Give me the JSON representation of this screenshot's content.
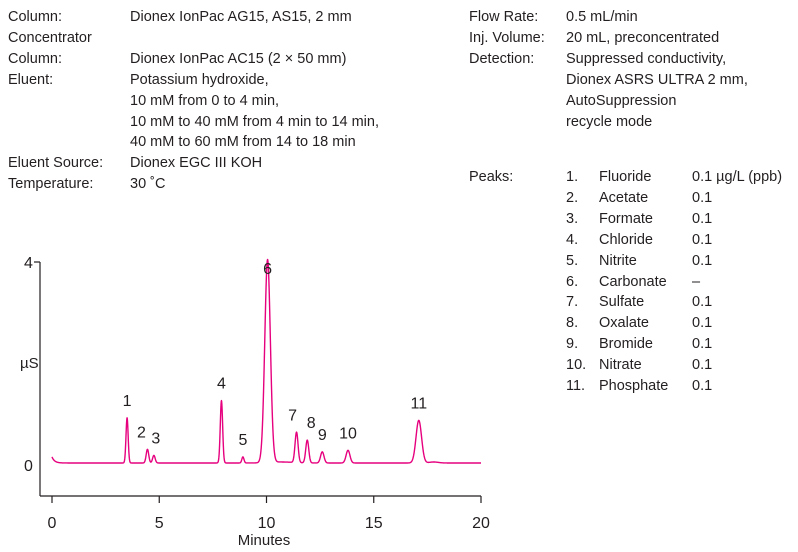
{
  "conditions_left": [
    {
      "label": "Column:",
      "lines": [
        "Dionex IonPac AG15, AS15, 2 mm"
      ]
    },
    {
      "label": "Concentrator",
      "lines": []
    },
    {
      "label": "Column:",
      "lines": [
        "Dionex IonPac AC15 (2 × 50 mm)"
      ]
    },
    {
      "label": "Eluent:",
      "lines": [
        "Potassium hydroxide,",
        "10 mM from 0 to 4 min,",
        "10 mM to 40 mM from 4 min to 14 min,",
        "40 mM to 60 mM from 14 to 18 min"
      ]
    },
    {
      "label": "Eluent Source:",
      "lines": [
        "Dionex EGC III KOH"
      ]
    },
    {
      "label": "Temperature:",
      "lines": [
        "30 ˚C"
      ]
    }
  ],
  "conditions_right": [
    {
      "label": "Flow Rate:",
      "lines": [
        "0.5 mL/min"
      ]
    },
    {
      "label": "Inj. Volume:",
      "lines": [
        "20 mL, preconcentrated"
      ]
    },
    {
      "label": "Detection:",
      "lines": [
        "Suppressed conductivity,",
        "Dionex ASRS ULTRA 2 mm,",
        "AutoSuppression",
        "recycle mode"
      ]
    }
  ],
  "peaks_label": "Peaks:",
  "peaks": [
    {
      "n": "1.",
      "name": "Fluoride",
      "amount": "0.1 µg/L (ppb)"
    },
    {
      "n": "2.",
      "name": "Acetate",
      "amount": "0.1"
    },
    {
      "n": "3.",
      "name": "Formate",
      "amount": "0.1"
    },
    {
      "n": "4.",
      "name": "Chloride",
      "amount": "0.1"
    },
    {
      "n": "5.",
      "name": "Nitrite",
      "amount": "0.1"
    },
    {
      "n": "6.",
      "name": "Carbonate",
      "amount": "–"
    },
    {
      "n": "7.",
      "name": "Sulfate",
      "amount": "0.1"
    },
    {
      "n": "8.",
      "name": "Oxalate",
      "amount": "0.1"
    },
    {
      "n": "9.",
      "name": "Bromide",
      "amount": "0.1"
    },
    {
      "n": "10.",
      "name": "Nitrate",
      "amount": "0.1"
    },
    {
      "n": "11.",
      "name": "Phosphate",
      "amount": "0.1"
    }
  ],
  "chart_data": {
    "type": "line",
    "title": "",
    "xlabel": "Minutes",
    "ylabel": "µS",
    "xlim": [
      0,
      20
    ],
    "ylim": [
      0,
      4
    ],
    "xticks": [
      0,
      5,
      10,
      15,
      20
    ],
    "yticks": [
      0,
      4
    ],
    "line_color": "#e6007e",
    "baseline": 0.0,
    "peaks": [
      {
        "label": "1",
        "x": 3.5,
        "y": 0.89
      },
      {
        "label": "2",
        "x": 4.45,
        "y": 0.27
      },
      {
        "label": "3",
        "x": 4.75,
        "y": 0.15
      },
      {
        "label": "4",
        "x": 7.9,
        "y": 1.23
      },
      {
        "label": "5",
        "x": 8.9,
        "y": 0.12
      },
      {
        "label": "6",
        "x": 10.05,
        "y": 4.0
      },
      {
        "label": "7",
        "x": 11.4,
        "y": 0.6
      },
      {
        "label": "8",
        "x": 11.9,
        "y": 0.45
      },
      {
        "label": "9",
        "x": 12.6,
        "y": 0.22
      },
      {
        "label": "10",
        "x": 13.8,
        "y": 0.25
      },
      {
        "label": "11",
        "x": 17.1,
        "y": 0.84
      }
    ]
  }
}
